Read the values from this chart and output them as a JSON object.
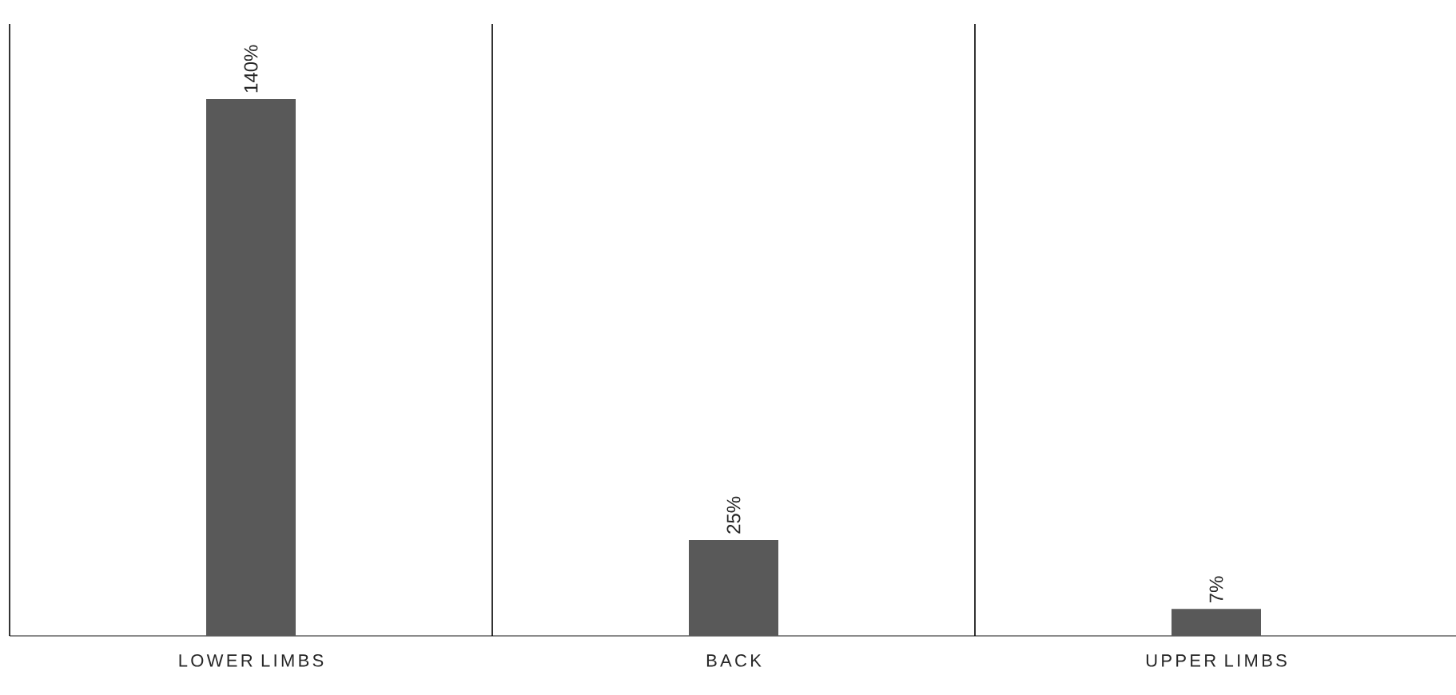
{
  "chart_data": {
    "type": "bar",
    "categories": [
      "LOWER LIMBS",
      "BACK",
      "UPPER LIMBS"
    ],
    "values": [
      140,
      25,
      7
    ],
    "value_labels": [
      "140%",
      "25%",
      "7%"
    ],
    "color": "#595959",
    "grid": "x"
  }
}
